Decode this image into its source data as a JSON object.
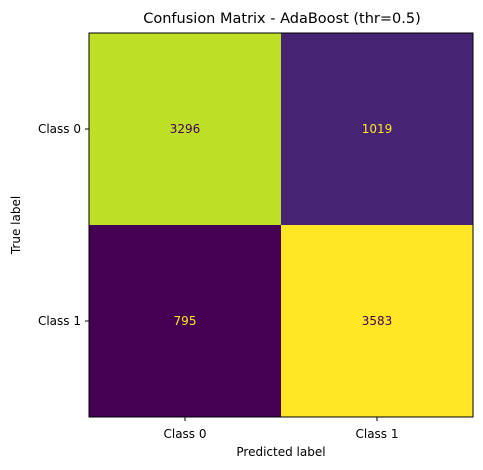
{
  "chart_data": {
    "type": "heatmap",
    "title": "Confusion Matrix - AdaBoost (thr=0.5)",
    "xlabel": "Predicted label",
    "ylabel": "True label",
    "x_categories": [
      "Class 0",
      "Class 1"
    ],
    "y_categories": [
      "Class 0",
      "Class 1"
    ],
    "values": [
      [
        3296,
        1019
      ],
      [
        795,
        3583
      ]
    ],
    "cell_labels": [
      [
        "3296",
        "1019"
      ],
      [
        "795",
        "3583"
      ]
    ],
    "colormap": "viridis",
    "grid": false,
    "colors": {
      "cell_0_0": "#bddf26",
      "cell_0_1": "#472374",
      "cell_1_0": "#440154",
      "cell_1_1": "#fde725",
      "text_on_light": "#440154",
      "text_on_dark": "#fde725"
    }
  }
}
